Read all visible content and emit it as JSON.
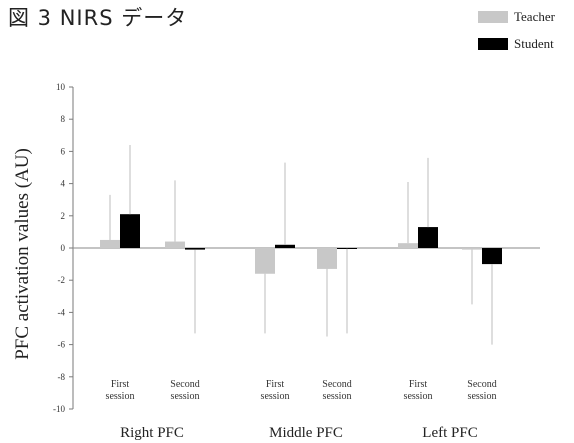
{
  "figure": {
    "title": "図 3  NIRS データ"
  },
  "chart_data": {
    "type": "bar",
    "ylabel": "PFC activation values (AU)",
    "ylim": [
      -10,
      10
    ],
    "yticks": [
      10,
      8,
      6,
      4,
      2,
      0,
      -2,
      -4,
      -6,
      -8,
      -10
    ],
    "groups": [
      {
        "label": "Right PFC",
        "sessions": [
          "First session",
          "Second session"
        ]
      },
      {
        "label": "Middle PFC",
        "sessions": [
          "First session",
          "Second session"
        ]
      },
      {
        "label": "Left PFC",
        "sessions": [
          "First session",
          "Second session"
        ]
      }
    ],
    "series": [
      {
        "name": "Teacher",
        "color": "#c8c8c8",
        "values": [
          0.5,
          0.4,
          -1.6,
          -1.3,
          0.3,
          -0.1
        ],
        "error_lo": [
          null,
          null,
          -5.3,
          -5.5,
          null,
          -3.5
        ],
        "error_hi": [
          3.3,
          4.2,
          null,
          null,
          4.1,
          null
        ]
      },
      {
        "name": "Student",
        "color": "#000000",
        "values": [
          2.1,
          -0.1,
          0.2,
          -0.05,
          1.3,
          -1.0
        ],
        "error_lo": [
          null,
          -5.3,
          null,
          -5.3,
          null,
          -6.0
        ],
        "error_hi": [
          6.4,
          null,
          5.3,
          null,
          5.6,
          null
        ]
      }
    ],
    "legend_position": "top-right",
    "grid": false
  }
}
